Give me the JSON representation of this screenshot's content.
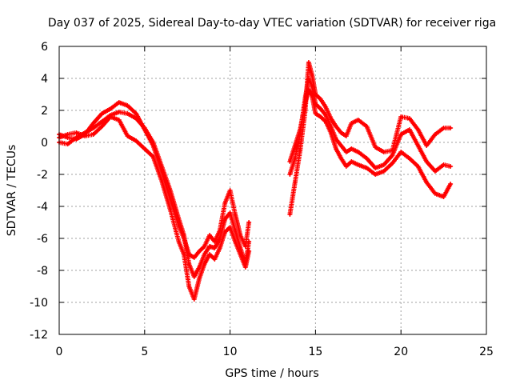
{
  "chart_data": {
    "type": "scatter",
    "title": "Day 037 of 2025, Sidereal Day-to-day VTEC variation (SDTVAR) for receiver riga",
    "xlabel": "GPS time / hours",
    "ylabel": "SDTVAR / TECUs",
    "xlim": [
      0,
      25
    ],
    "ylim": [
      -12,
      6
    ],
    "x_ticks": [
      0,
      5,
      10,
      15,
      20,
      25
    ],
    "y_ticks": [
      -12,
      -10,
      -8,
      -6,
      -4,
      -2,
      0,
      2,
      4,
      6
    ],
    "grid": true,
    "marker": "+",
    "color": "#ff0000",
    "series": [
      {
        "name": "trace-1",
        "x": [
          0.0,
          0.5,
          1.0,
          1.5,
          2.0,
          2.5,
          3.0,
          3.5,
          4.0,
          4.5,
          5.0,
          5.5,
          6.0,
          6.5,
          7.0,
          7.3,
          7.6,
          7.9,
          8.2,
          8.5,
          8.8,
          9.1,
          9.4,
          9.7,
          10.0,
          10.3,
          10.6,
          10.9,
          11.1
        ],
        "y": [
          0.5,
          0.3,
          0.2,
          0.5,
          1.2,
          1.8,
          2.1,
          2.5,
          2.3,
          1.8,
          0.8,
          -0.2,
          -1.8,
          -3.5,
          -5.2,
          -6.0,
          -7.0,
          -7.2,
          -6.8,
          -6.5,
          -5.8,
          -6.2,
          -5.5,
          -3.8,
          -3.0,
          -4.5,
          -5.8,
          -6.5,
          -5.0
        ]
      },
      {
        "name": "trace-2",
        "x": [
          0.0,
          0.5,
          1.0,
          1.5,
          2.0,
          2.5,
          3.0,
          3.5,
          4.0,
          4.5,
          5.0,
          5.5,
          6.0,
          6.5,
          7.0,
          7.3,
          7.6,
          7.9,
          8.2,
          8.5,
          8.8,
          9.1,
          9.4,
          9.7,
          10.0,
          10.3,
          10.6,
          10.9,
          11.1
        ],
        "y": [
          0.0,
          -0.1,
          0.3,
          0.6,
          0.9,
          1.3,
          1.7,
          1.9,
          1.8,
          1.5,
          0.9,
          0.0,
          -1.5,
          -3.0,
          -4.8,
          -5.8,
          -7.6,
          -8.4,
          -7.8,
          -7.0,
          -6.5,
          -6.6,
          -6.0,
          -4.8,
          -4.4,
          -5.5,
          -6.6,
          -7.6,
          -6.2
        ]
      },
      {
        "name": "trace-3",
        "x": [
          0.0,
          0.5,
          1.0,
          1.5,
          2.0,
          2.5,
          3.0,
          3.5,
          4.0,
          4.5,
          5.0,
          5.5,
          6.0,
          6.5,
          7.0,
          7.3,
          7.6,
          7.9,
          8.2,
          8.5,
          8.8,
          9.1,
          9.4,
          9.7,
          10.0,
          10.3,
          10.6,
          10.9,
          11.1
        ],
        "y": [
          0.3,
          0.5,
          0.6,
          0.4,
          0.5,
          1.0,
          1.6,
          1.4,
          0.4,
          0.1,
          -0.4,
          -0.9,
          -2.4,
          -4.2,
          -6.2,
          -7.0,
          -9.0,
          -9.8,
          -8.5,
          -7.6,
          -7.0,
          -7.3,
          -6.6,
          -5.6,
          -5.3,
          -6.2,
          -7.0,
          -7.8,
          -6.8
        ]
      },
      {
        "name": "trace-4",
        "x": [
          13.5,
          13.8,
          14.1,
          14.4,
          14.6,
          14.8,
          15.0,
          15.3,
          15.6,
          15.9,
          16.2,
          16.5,
          16.8,
          17.1,
          17.5,
          18.0,
          18.5,
          19.0,
          19.5,
          20.0,
          20.5,
          21.0,
          21.5,
          22.0,
          22.5,
          22.9
        ],
        "y": [
          -4.5,
          -2.5,
          -0.5,
          2.0,
          5.0,
          4.2,
          3.0,
          2.7,
          2.2,
          1.5,
          1.0,
          0.6,
          0.4,
          1.2,
          1.4,
          1.0,
          -0.3,
          -0.6,
          -0.5,
          1.6,
          1.5,
          0.8,
          -0.2,
          0.5,
          0.9,
          0.9
        ]
      },
      {
        "name": "trace-5",
        "x": [
          13.5,
          13.8,
          14.1,
          14.4,
          14.6,
          14.8,
          15.0,
          15.3,
          15.6,
          15.9,
          16.2,
          16.5,
          16.8,
          17.1,
          17.5,
          18.0,
          18.5,
          19.0,
          19.5,
          20.0,
          20.5,
          21.0,
          21.5,
          22.0,
          22.5,
          22.9
        ],
        "y": [
          -2.0,
          -1.0,
          0.5,
          2.8,
          4.0,
          3.5,
          2.4,
          2.1,
          1.7,
          1.0,
          0.2,
          -0.2,
          -0.6,
          -0.4,
          -0.6,
          -1.0,
          -1.6,
          -1.4,
          -0.8,
          0.5,
          0.8,
          -0.2,
          -1.2,
          -1.8,
          -1.4,
          -1.5
        ]
      },
      {
        "name": "trace-6",
        "x": [
          13.5,
          13.8,
          14.1,
          14.4,
          14.6,
          14.8,
          15.0,
          15.3,
          15.6,
          15.9,
          16.2,
          16.5,
          16.8,
          17.1,
          17.5,
          18.0,
          18.5,
          19.0,
          19.5,
          20.0,
          20.5,
          21.0,
          21.5,
          22.0,
          22.5,
          22.9
        ],
        "y": [
          -1.2,
          -0.2,
          0.8,
          2.5,
          3.3,
          2.9,
          1.8,
          1.6,
          1.3,
          0.6,
          -0.4,
          -1.0,
          -1.5,
          -1.2,
          -1.4,
          -1.6,
          -2.0,
          -1.8,
          -1.3,
          -0.6,
          -1.0,
          -1.5,
          -2.5,
          -3.2,
          -3.4,
          -2.6
        ]
      }
    ]
  }
}
